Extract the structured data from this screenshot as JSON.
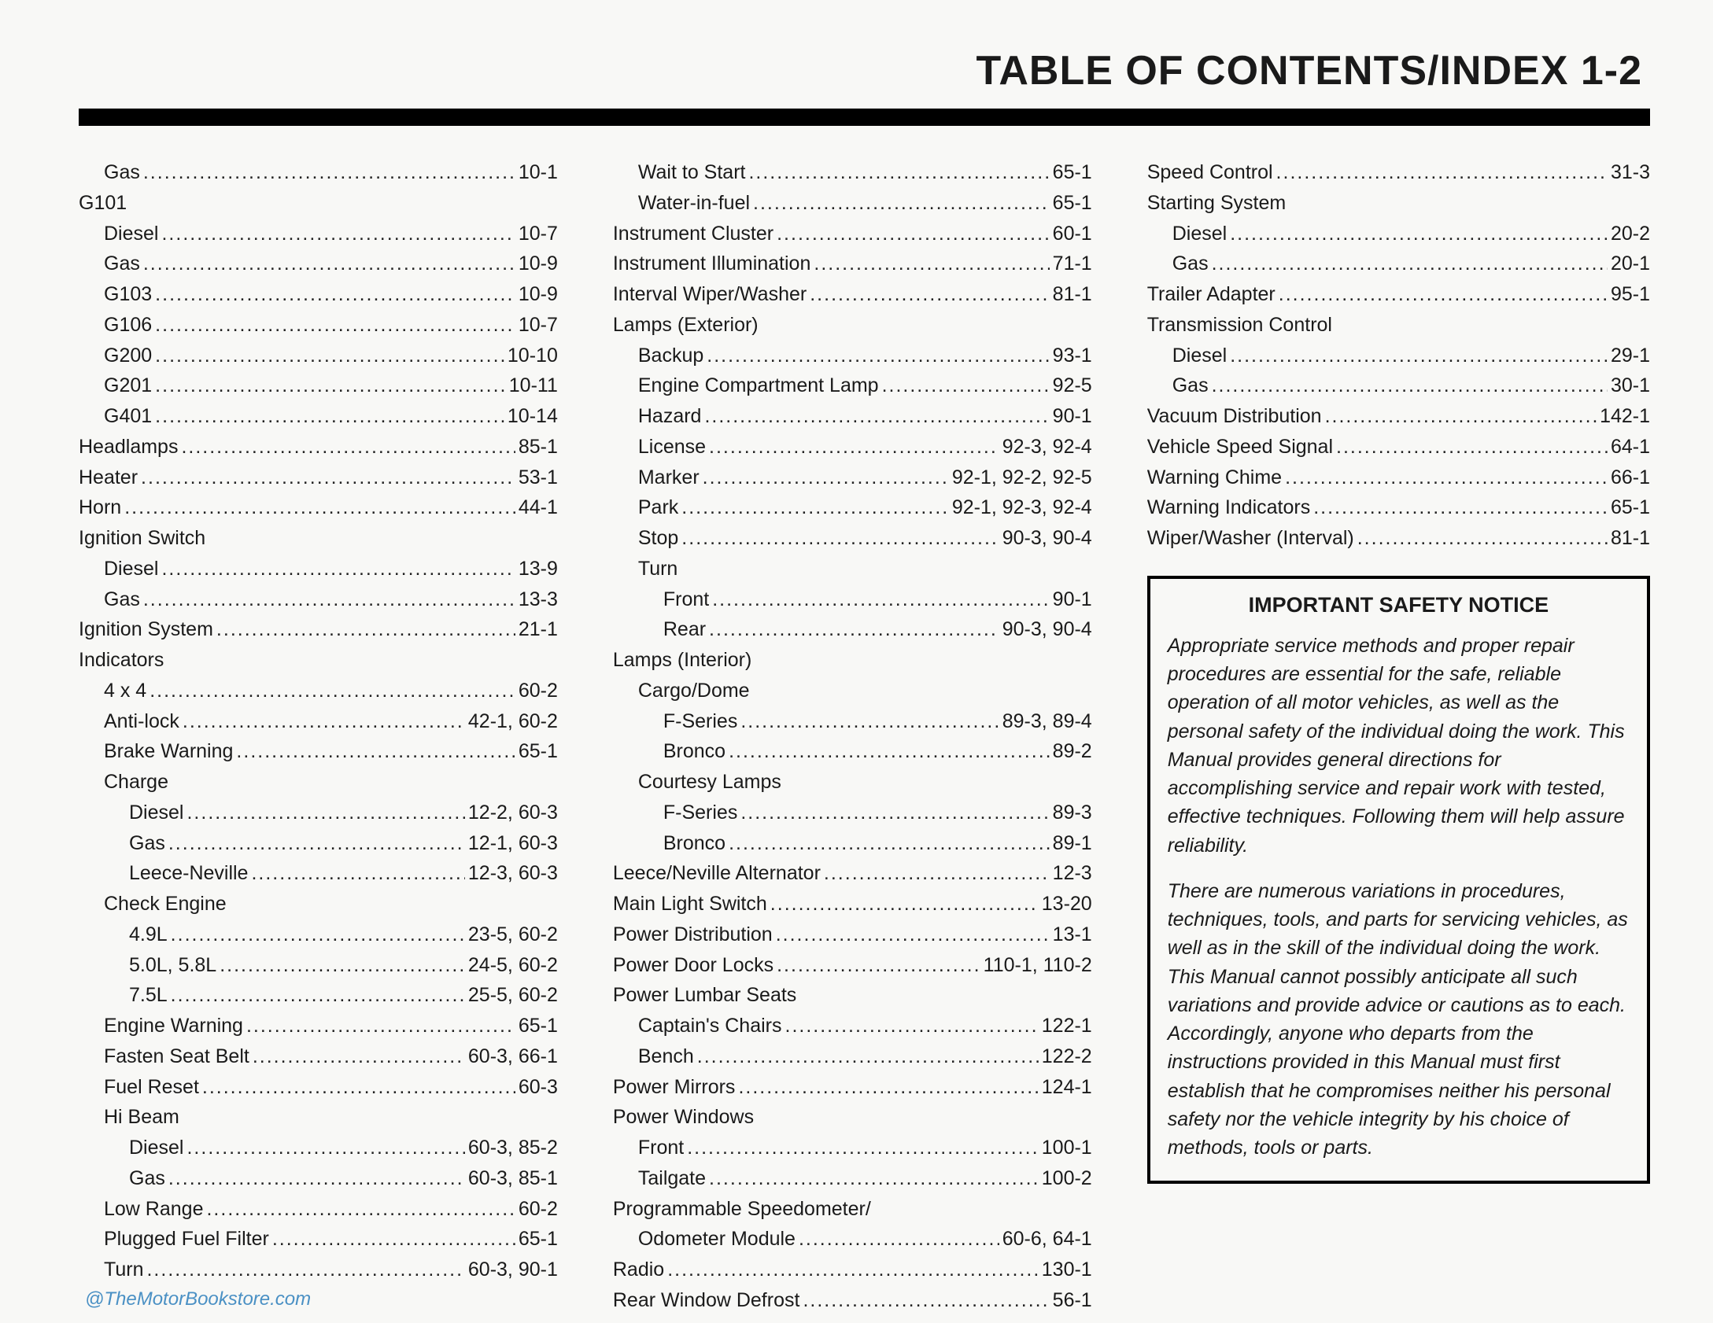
{
  "header": "TABLE OF CONTENTS/INDEX   1-2",
  "col1": [
    {
      "label": "Gas",
      "page": "10-1",
      "indent": 1
    },
    {
      "label": "G101",
      "page": "",
      "indent": 0,
      "heading": true
    },
    {
      "label": "Diesel",
      "page": "10-7",
      "indent": 1
    },
    {
      "label": "Gas",
      "page": "10-9",
      "indent": 1
    },
    {
      "label": "G103",
      "page": "10-9",
      "indent": 1
    },
    {
      "label": "G106",
      "page": "10-7",
      "indent": 1
    },
    {
      "label": "G200",
      "page": "10-10",
      "indent": 1
    },
    {
      "label": "G201",
      "page": "10-11",
      "indent": 1
    },
    {
      "label": "G401",
      "page": "10-14",
      "indent": 1
    },
    {
      "label": "Headlamps",
      "page": "85-1",
      "indent": 0
    },
    {
      "label": "Heater",
      "page": "53-1",
      "indent": 0
    },
    {
      "label": "Horn",
      "page": "44-1",
      "indent": 0
    },
    {
      "label": "Ignition Switch",
      "page": "",
      "indent": 0,
      "heading": true
    },
    {
      "label": "Diesel",
      "page": "13-9",
      "indent": 1
    },
    {
      "label": "Gas",
      "page": "13-3",
      "indent": 1
    },
    {
      "label": "Ignition System",
      "page": "21-1",
      "indent": 0
    },
    {
      "label": "Indicators",
      "page": "",
      "indent": 0,
      "heading": true
    },
    {
      "label": "4 x 4",
      "page": "60-2",
      "indent": 1
    },
    {
      "label": "Anti-lock",
      "page": "42-1, 60-2",
      "indent": 1
    },
    {
      "label": "Brake Warning",
      "page": "65-1",
      "indent": 1
    },
    {
      "label": "Charge",
      "page": "",
      "indent": 1,
      "heading": true
    },
    {
      "label": "Diesel",
      "page": "12-2, 60-3",
      "indent": 2
    },
    {
      "label": "Gas",
      "page": "12-1, 60-3",
      "indent": 2
    },
    {
      "label": "Leece-Neville",
      "page": "12-3, 60-3",
      "indent": 2
    },
    {
      "label": "Check Engine",
      "page": "",
      "indent": 1,
      "heading": true
    },
    {
      "label": "4.9L",
      "page": "23-5, 60-2",
      "indent": 2
    },
    {
      "label": "5.0L, 5.8L",
      "page": "24-5, 60-2",
      "indent": 2
    },
    {
      "label": "7.5L",
      "page": "25-5, 60-2",
      "indent": 2
    },
    {
      "label": "Engine Warning",
      "page": "65-1",
      "indent": 1
    },
    {
      "label": "Fasten Seat Belt",
      "page": "60-3, 66-1",
      "indent": 1
    },
    {
      "label": "Fuel Reset",
      "page": "60-3",
      "indent": 1
    },
    {
      "label": "Hi Beam",
      "page": "",
      "indent": 1,
      "heading": true
    },
    {
      "label": "Diesel",
      "page": "60-3, 85-2",
      "indent": 2
    },
    {
      "label": "Gas",
      "page": "60-3, 85-1",
      "indent": 2
    },
    {
      "label": "Low Range",
      "page": "60-2",
      "indent": 1
    },
    {
      "label": "Plugged Fuel Filter",
      "page": "65-1",
      "indent": 1
    },
    {
      "label": "Turn",
      "page": "60-3, 90-1",
      "indent": 1
    }
  ],
  "col2": [
    {
      "label": "Wait to Start",
      "page": "65-1",
      "indent": 1
    },
    {
      "label": "Water-in-fuel",
      "page": "65-1",
      "indent": 1
    },
    {
      "label": "Instrument Cluster",
      "page": "60-1",
      "indent": 0
    },
    {
      "label": "Instrument Illumination",
      "page": "71-1",
      "indent": 0
    },
    {
      "label": "Interval Wiper/Washer",
      "page": "81-1",
      "indent": 0
    },
    {
      "label": "Lamps (Exterior)",
      "page": "",
      "indent": 0,
      "heading": true
    },
    {
      "label": "Backup",
      "page": "93-1",
      "indent": 1
    },
    {
      "label": "Engine Compartment Lamp",
      "page": "92-5",
      "indent": 1
    },
    {
      "label": "Hazard",
      "page": "90-1",
      "indent": 1
    },
    {
      "label": "License",
      "page": "92-3, 92-4",
      "indent": 1
    },
    {
      "label": "Marker",
      "page": "92-1, 92-2, 92-5",
      "indent": 1
    },
    {
      "label": "Park",
      "page": "92-1, 92-3, 92-4",
      "indent": 1
    },
    {
      "label": "Stop",
      "page": "90-3, 90-4",
      "indent": 1
    },
    {
      "label": "Turn",
      "page": "",
      "indent": 1,
      "heading": true
    },
    {
      "label": "Front",
      "page": "90-1",
      "indent": 2
    },
    {
      "label": "Rear",
      "page": "90-3, 90-4",
      "indent": 2
    },
    {
      "label": "Lamps (Interior)",
      "page": "",
      "indent": 0,
      "heading": true
    },
    {
      "label": "Cargo/Dome",
      "page": "",
      "indent": 1,
      "heading": true
    },
    {
      "label": "F-Series",
      "page": "89-3, 89-4",
      "indent": 2
    },
    {
      "label": "Bronco",
      "page": "89-2",
      "indent": 2
    },
    {
      "label": "Courtesy Lamps",
      "page": "",
      "indent": 1,
      "heading": true
    },
    {
      "label": "F-Series",
      "page": "89-3",
      "indent": 2
    },
    {
      "label": "Bronco",
      "page": "89-1",
      "indent": 2
    },
    {
      "label": "Leece/Neville Alternator",
      "page": "12-3",
      "indent": 0
    },
    {
      "label": "Main Light Switch",
      "page": "13-20",
      "indent": 0
    },
    {
      "label": "Power Distribution",
      "page": "13-1",
      "indent": 0
    },
    {
      "label": "Power Door Locks",
      "page": "110-1, 110-2",
      "indent": 0
    },
    {
      "label": "Power Lumbar Seats",
      "page": "",
      "indent": 0,
      "heading": true
    },
    {
      "label": "Captain's Chairs",
      "page": "122-1",
      "indent": 1
    },
    {
      "label": "Bench",
      "page": "122-2",
      "indent": 1
    },
    {
      "label": "Power Mirrors",
      "page": "124-1",
      "indent": 0
    },
    {
      "label": "Power Windows",
      "page": "",
      "indent": 0,
      "heading": true
    },
    {
      "label": "Front",
      "page": "100-1",
      "indent": 1
    },
    {
      "label": "Tailgate",
      "page": "100-2",
      "indent": 1
    },
    {
      "label": "Programmable Speedometer/",
      "page": "",
      "indent": 0,
      "heading": true
    },
    {
      "label": "Odometer Module",
      "page": "60-6, 64-1",
      "indent": 1
    },
    {
      "label": "Radio",
      "page": "130-1",
      "indent": 0
    },
    {
      "label": "Rear Window Defrost",
      "page": "56-1",
      "indent": 0
    }
  ],
  "col3": [
    {
      "label": "Speed Control",
      "page": "31-3",
      "indent": 0
    },
    {
      "label": "Starting System",
      "page": "",
      "indent": 0,
      "heading": true
    },
    {
      "label": "Diesel",
      "page": "20-2",
      "indent": 1
    },
    {
      "label": "Gas",
      "page": "20-1",
      "indent": 1
    },
    {
      "label": "Trailer Adapter",
      "page": "95-1",
      "indent": 0
    },
    {
      "label": "Transmission Control",
      "page": "",
      "indent": 0,
      "heading": true
    },
    {
      "label": "Diesel",
      "page": "29-1",
      "indent": 1
    },
    {
      "label": "Gas",
      "page": "30-1",
      "indent": 1
    },
    {
      "label": "Vacuum Distribution",
      "page": "142-1",
      "indent": 0
    },
    {
      "label": "Vehicle Speed Signal",
      "page": "64-1",
      "indent": 0
    },
    {
      "label": "Warning Chime",
      "page": "66-1",
      "indent": 0
    },
    {
      "label": "Warning Indicators",
      "page": "65-1",
      "indent": 0
    },
    {
      "label": "Wiper/Washer (Interval)",
      "page": "81-1",
      "indent": 0
    }
  ],
  "notice": {
    "title": "IMPORTANT SAFETY NOTICE",
    "para1": "Appropriate service methods and proper repair procedures are essential for the safe, reliable operation of all motor vehicles, as well as the personal safety of the individual doing the work. This Manual provides general directions for accomplishing service and repair work with tested, effective techniques. Following them will help assure reliability.",
    "para2": "There are numerous variations in procedures, techniques, tools, and parts for servicing vehicles, as well as in the skill of the individual doing the work. This Manual cannot possibly anticipate all such variations and provide advice or cautions as to each. Accordingly, anyone who departs from the instructions provided in this Manual must first establish that he compromises neither his personal safety nor the vehicle integrity by his choice of methods, tools or parts."
  },
  "watermark": "@TheMotorBookstore.com"
}
